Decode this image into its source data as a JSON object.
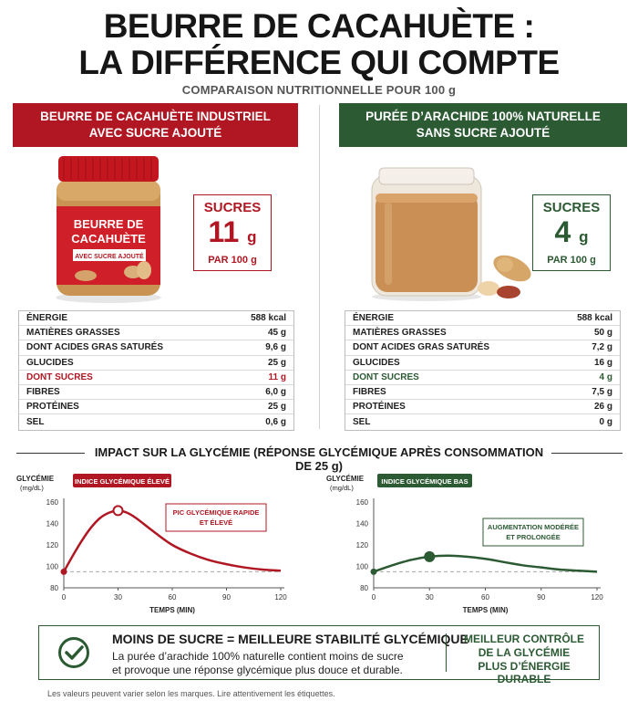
{
  "title": {
    "line1": "BEURRE DE CACAHUÈTE :",
    "line2": "LA DIFFÉRENCE QUI COMPTE"
  },
  "subtitle": "COMPARAISON NUTRITIONNELLE POUR 100 g",
  "left": {
    "header": [
      "BEURRE DE CACAHUÈTE INDUSTRIEL",
      "AVEC SUCRE AJOUTÉ"
    ],
    "jar_label": [
      "BEURRE DE",
      "CACAHUÈTE"
    ],
    "jar_sublabel": "AVEC SUCRE AJOUTÉ",
    "sugar": {
      "label": "SUCRES",
      "value": "11",
      "unit_g": "g",
      "per": "PAR 100 g"
    },
    "nutrition": [
      {
        "k": "ÉNERGIE",
        "v": "588 kcal"
      },
      {
        "k": "MATIÈRES GRASSES",
        "v": "45 g"
      },
      {
        "k": "DONT ACIDES GRAS SATURÉS",
        "v": "9,6 g"
      },
      {
        "k": "GLUCIDES",
        "v": "25 g"
      },
      {
        "k": "DONT SUCRES",
        "v": "11 g"
      },
      {
        "k": "FIBRES",
        "v": "6,0 g"
      },
      {
        "k": "PROTÉINES",
        "v": "25 g"
      },
      {
        "k": "SEL",
        "v": "0,6 g"
      }
    ]
  },
  "right": {
    "header": [
      "PURÉE D’ARACHIDE 100% NATURELLE",
      "SANS SUCRE AJOUTÉ"
    ],
    "sugar": {
      "label": "SUCRES",
      "value": "4",
      "unit_g": "g",
      "per": "PAR 100 g"
    },
    "nutrition": [
      {
        "k": "ÉNERGIE",
        "v": "588 kcal"
      },
      {
        "k": "MATIÈRES GRASSES",
        "v": "50 g"
      },
      {
        "k": "DONT ACIDES GRAS SATURÉS",
        "v": "7,2 g"
      },
      {
        "k": "GLUCIDES",
        "v": "16 g"
      },
      {
        "k": "DONT SUCRES",
        "v": "4 g"
      },
      {
        "k": "FIBRES",
        "v": "7,5 g"
      },
      {
        "k": "PROTÉINES",
        "v": "26 g"
      },
      {
        "k": "SEL",
        "v": "0 g"
      }
    ]
  },
  "impact_title": "IMPACT SUR LA GLYCÉMIE (RÉPONSE GLYCÉMIQUE APRÈS CONSOMMATION DE 25 g)",
  "colors": {
    "red": "#b01722",
    "green": "#2b5a33"
  },
  "chart_data": [
    {
      "type": "line",
      "badge": "INDICE GLYCÉMIQUE ÉLEVÉ",
      "ylabel": [
        "GLYCÉMIE",
        "(mg/dL)"
      ],
      "xlabel": "TEMPS (MIN)",
      "xlim": [
        0,
        120
      ],
      "ylim": [
        80,
        160
      ],
      "xticks": [
        0,
        30,
        60,
        90,
        120
      ],
      "yticks": [
        80,
        100,
        120,
        140,
        160
      ],
      "baseline": 95,
      "color": "#b01722",
      "x": [
        0,
        5,
        10,
        15,
        20,
        25,
        30,
        35,
        40,
        50,
        60,
        70,
        80,
        90,
        100,
        110,
        120
      ],
      "y": [
        95,
        110,
        124,
        136,
        145,
        150,
        152,
        150,
        145,
        132,
        120,
        112,
        106,
        102,
        99,
        97,
        96
      ],
      "marker": {
        "x": 30,
        "y": 152
      },
      "annotation": [
        "PIC GLYCÉMIQUE RAPIDE",
        "ET ÉLEVÉ"
      ]
    },
    {
      "type": "line",
      "badge": "INDICE GLYCÉMIQUE BAS",
      "ylabel": [
        "GLYCÉMIE",
        "(mg/dL)"
      ],
      "xlabel": "TEMPS (MIN)",
      "xlim": [
        0,
        120
      ],
      "ylim": [
        80,
        160
      ],
      "xticks": [
        0,
        30,
        60,
        90,
        120
      ],
      "yticks": [
        80,
        100,
        120,
        140,
        160
      ],
      "baseline": 95,
      "color": "#2b5a33",
      "x": [
        0,
        10,
        20,
        30,
        40,
        50,
        60,
        70,
        80,
        90,
        100,
        110,
        120
      ],
      "y": [
        95,
        101,
        106,
        109,
        110,
        109,
        107,
        104,
        101,
        99,
        97,
        96,
        95
      ],
      "marker": {
        "x": 30,
        "y": 109
      },
      "annotation": [
        "AUGMENTATION MODÉRÉE",
        "ET PROLONGÉE"
      ]
    }
  ],
  "conclusion": {
    "title": "MOINS DE SUCRE = MEILLEURE STABILITÉ GLYCÉMIQUE",
    "text1": "La purée d’arachide 100% naturelle contient moins de sucre",
    "text2": "et provoque une réponse glycémique plus douce et durable.",
    "right1": "MEILLEUR CONTRÔLE",
    "right2": "DE LA GLYCÉMIE",
    "right3": "PLUS D’ÉNERGIE DURABLE"
  },
  "footnote": "Les valeurs peuvent varier selon les marques. Lire attentivement les étiquettes."
}
